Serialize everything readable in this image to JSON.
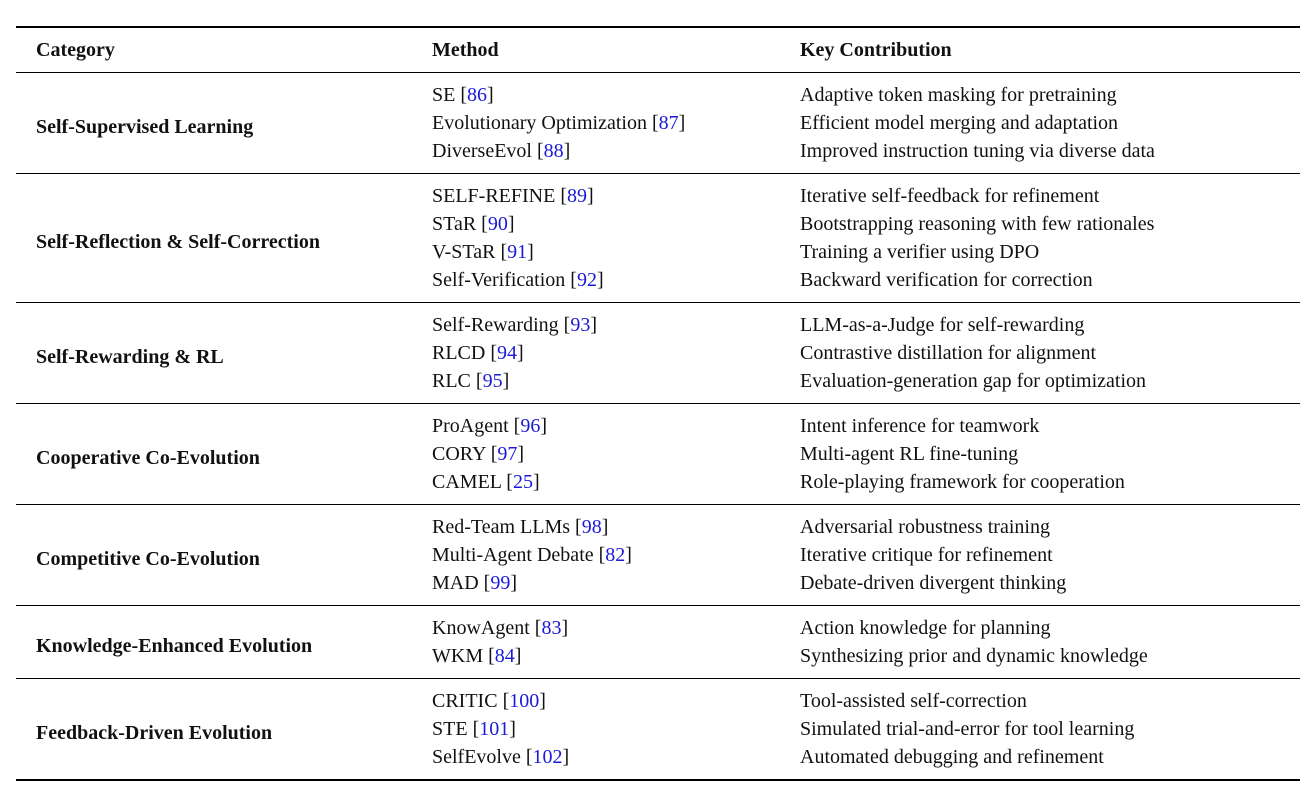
{
  "page": {
    "background": "#ffffff",
    "text_color": "#111111"
  },
  "table": {
    "cite_color": "#1a1ad9",
    "headers": [
      "Category",
      "Method",
      "Key Contribution"
    ],
    "groups": [
      {
        "category": "Self-Supervised Learning",
        "rows": [
          {
            "method": "SE",
            "cite": "86",
            "contribution": "Adaptive token masking for pretraining"
          },
          {
            "method": "Evolutionary Optimization",
            "cite": "87",
            "contribution": "Efficient model merging and adaptation"
          },
          {
            "method": "DiverseEvol",
            "cite": "88",
            "contribution": "Improved instruction tuning via diverse data"
          }
        ]
      },
      {
        "category": "Self-Reflection & Self-Correction",
        "rows": [
          {
            "method": "SELF-REFINE",
            "cite": "89",
            "contribution": "Iterative self-feedback for refinement"
          },
          {
            "method": "STaR",
            "cite": "90",
            "contribution": "Bootstrapping reasoning with few rationales"
          },
          {
            "method": "V-STaR",
            "cite": "91",
            "contribution": "Training a verifier using DPO"
          },
          {
            "method": "Self-Verification",
            "cite": "92",
            "contribution": "Backward verification for correction"
          }
        ]
      },
      {
        "category": "Self-Rewarding & RL",
        "rows": [
          {
            "method": "Self-Rewarding",
            "cite": "93",
            "contribution": "LLM-as-a-Judge for self-rewarding"
          },
          {
            "method": "RLCD",
            "cite": "94",
            "contribution": "Contrastive distillation for alignment"
          },
          {
            "method": "RLC",
            "cite": "95",
            "contribution": "Evaluation-generation gap for optimization"
          }
        ]
      },
      {
        "category": "Cooperative Co-Evolution",
        "rows": [
          {
            "method": "ProAgent",
            "cite": "96",
            "contribution": "Intent inference for teamwork"
          },
          {
            "method": "CORY",
            "cite": "97",
            "contribution": "Multi-agent RL fine-tuning"
          },
          {
            "method": "CAMEL",
            "cite": "25",
            "contribution": "Role-playing framework for cooperation"
          }
        ]
      },
      {
        "category": "Competitive Co-Evolution",
        "rows": [
          {
            "method": "Red-Team LLMs",
            "cite": "98",
            "contribution": "Adversarial robustness training"
          },
          {
            "method": "Multi-Agent Debate",
            "cite": "82",
            "contribution": "Iterative critique for refinement"
          },
          {
            "method": "MAD",
            "cite": "99",
            "contribution": "Debate-driven divergent thinking"
          }
        ]
      },
      {
        "category": "Knowledge-Enhanced Evolution",
        "rows": [
          {
            "method": "KnowAgent",
            "cite": "83",
            "contribution": "Action knowledge for planning"
          },
          {
            "method": "WKM",
            "cite": "84",
            "contribution": "Synthesizing prior and dynamic knowledge"
          }
        ]
      },
      {
        "category": "Feedback-Driven Evolution",
        "rows": [
          {
            "method": "CRITIC",
            "cite": "100",
            "contribution": "Tool-assisted self-correction"
          },
          {
            "method": "STE",
            "cite": "101",
            "contribution": "Simulated trial-and-error for tool learning"
          },
          {
            "method": "SelfEvolve",
            "cite": "102",
            "contribution": "Automated debugging and refinement"
          }
        ]
      }
    ]
  }
}
